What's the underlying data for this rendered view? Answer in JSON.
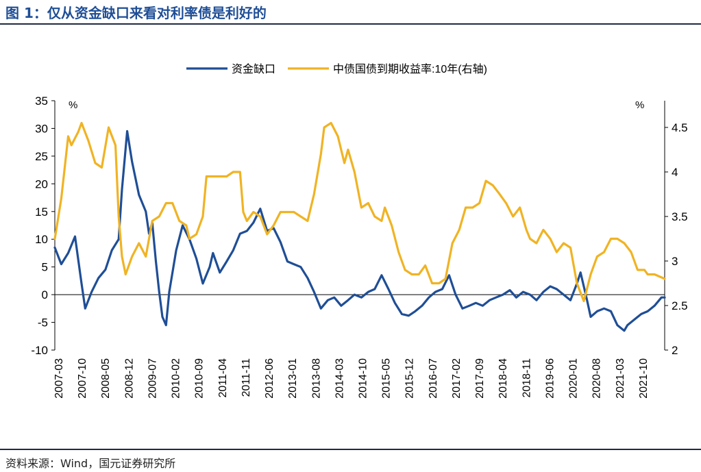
{
  "header": {
    "title": "图 1：仅从资金缺口来看对利率债是利好的"
  },
  "footer": {
    "source": "资料来源：Wind，国元证券研究所"
  },
  "colors": {
    "title": "#1f4e96",
    "gap_series": "#1f4e96",
    "yield_series": "#f0b323",
    "axis": "#000000"
  },
  "chart_data": {
    "type": "line",
    "y_unit_left": "%",
    "y_unit_right": "%",
    "ylim_left": [
      -10,
      35
    ],
    "yticks_left": [
      "-10",
      "-5",
      "0",
      "5",
      "10",
      "15",
      "20",
      "25",
      "30",
      "35"
    ],
    "ylim_right": [
      2,
      4.8
    ],
    "yticks_right": [
      "2",
      "2.5",
      "3",
      "3.5",
      "4",
      "4.5"
    ],
    "x_tick_labels": [
      "2007-03",
      "2007-10",
      "2008-05",
      "2008-12",
      "2009-07",
      "2010-02",
      "2010-09",
      "2011-04",
      "2011-11",
      "2012-06",
      "2013-01",
      "2013-08",
      "2014-03",
      "2014-10",
      "2015-05",
      "2015-12",
      "2016-07",
      "2017-02",
      "2017-09",
      "2018-04",
      "2018-11",
      "2019-06",
      "2020-01",
      "2020-08",
      "2021-03",
      "2021-10"
    ],
    "legend_position": "top-center",
    "grid": false,
    "series": [
      {
        "name": "资金缺口",
        "axis": "left",
        "values": [
          [
            2007.17,
            8.5
          ],
          [
            2007.33,
            5.5
          ],
          [
            2007.5,
            7.5
          ],
          [
            2007.67,
            10.5
          ],
          [
            2007.83,
            2.0
          ],
          [
            2007.92,
            -2.5
          ],
          [
            2008.08,
            0.5
          ],
          [
            2008.25,
            3.0
          ],
          [
            2008.42,
            4.5
          ],
          [
            2008.58,
            8.0
          ],
          [
            2008.75,
            10.0
          ],
          [
            2008.83,
            19.0
          ],
          [
            2008.96,
            29.5
          ],
          [
            2009.08,
            24.0
          ],
          [
            2009.25,
            18.0
          ],
          [
            2009.42,
            15.0
          ],
          [
            2009.5,
            11.0
          ],
          [
            2009.58,
            13.0
          ],
          [
            2009.67,
            6.0
          ],
          [
            2009.75,
            0.5
          ],
          [
            2009.83,
            -4.0
          ],
          [
            2009.92,
            -5.5
          ],
          [
            2010.0,
            0.5
          ],
          [
            2010.17,
            8.0
          ],
          [
            2010.33,
            12.5
          ],
          [
            2010.5,
            10.0
          ],
          [
            2010.67,
            6.5
          ],
          [
            2010.83,
            2.0
          ],
          [
            2011.0,
            5.0
          ],
          [
            2011.08,
            7.5
          ],
          [
            2011.25,
            4.0
          ],
          [
            2011.42,
            6.0
          ],
          [
            2011.58,
            8.0
          ],
          [
            2011.75,
            11.0
          ],
          [
            2011.92,
            11.5
          ],
          [
            2012.08,
            13.0
          ],
          [
            2012.25,
            15.5
          ],
          [
            2012.42,
            11.5
          ],
          [
            2012.58,
            12.0
          ],
          [
            2012.75,
            9.5
          ],
          [
            2012.92,
            6.0
          ],
          [
            2013.08,
            5.5
          ],
          [
            2013.25,
            5.0
          ],
          [
            2013.42,
            3.0
          ],
          [
            2013.58,
            0.5
          ],
          [
            2013.75,
            -2.5
          ],
          [
            2013.92,
            -1.0
          ],
          [
            2014.08,
            -0.5
          ],
          [
            2014.25,
            -2.0
          ],
          [
            2014.42,
            -1.0
          ],
          [
            2014.58,
            0.0
          ],
          [
            2014.75,
            -0.5
          ],
          [
            2014.92,
            0.5
          ],
          [
            2015.08,
            1.0
          ],
          [
            2015.25,
            3.5
          ],
          [
            2015.42,
            1.0
          ],
          [
            2015.58,
            -1.5
          ],
          [
            2015.75,
            -3.5
          ],
          [
            2015.92,
            -3.8
          ],
          [
            2016.08,
            -3.0
          ],
          [
            2016.25,
            -2.0
          ],
          [
            2016.42,
            -0.5
          ],
          [
            2016.58,
            0.5
          ],
          [
            2016.75,
            1.0
          ],
          [
            2016.92,
            3.5
          ],
          [
            2017.08,
            0.0
          ],
          [
            2017.25,
            -2.5
          ],
          [
            2017.42,
            -2.0
          ],
          [
            2017.58,
            -1.5
          ],
          [
            2017.75,
            -2.0
          ],
          [
            2017.92,
            -1.0
          ],
          [
            2018.08,
            -0.5
          ],
          [
            2018.25,
            0.0
          ],
          [
            2018.42,
            0.8
          ],
          [
            2018.58,
            -0.5
          ],
          [
            2018.75,
            0.5
          ],
          [
            2018.92,
            0.0
          ],
          [
            2019.08,
            -1.0
          ],
          [
            2019.25,
            0.5
          ],
          [
            2019.42,
            1.5
          ],
          [
            2019.58,
            1.0
          ],
          [
            2019.75,
            0.0
          ],
          [
            2019.92,
            -1.0
          ],
          [
            2020.08,
            2.0
          ],
          [
            2020.17,
            4.0
          ],
          [
            2020.33,
            -1.0
          ],
          [
            2020.42,
            -4.0
          ],
          [
            2020.58,
            -3.0
          ],
          [
            2020.75,
            -2.5
          ],
          [
            2020.92,
            -3.0
          ],
          [
            2021.08,
            -5.5
          ],
          [
            2021.25,
            -6.5
          ],
          [
            2021.33,
            -5.5
          ],
          [
            2021.5,
            -4.5
          ],
          [
            2021.67,
            -3.5
          ],
          [
            2021.83,
            -3.0
          ],
          [
            2022.0,
            -2.0
          ],
          [
            2022.17,
            -0.5
          ],
          [
            2022.25,
            -0.5
          ]
        ]
      },
      {
        "name": "中债国债到期收益率:10年(右轴)",
        "axis": "right",
        "values": [
          [
            2007.17,
            3.25
          ],
          [
            2007.33,
            3.7
          ],
          [
            2007.5,
            4.4
          ],
          [
            2007.58,
            4.3
          ],
          [
            2007.75,
            4.45
          ],
          [
            2007.83,
            4.55
          ],
          [
            2008.0,
            4.35
          ],
          [
            2008.17,
            4.1
          ],
          [
            2008.33,
            4.05
          ],
          [
            2008.5,
            4.5
          ],
          [
            2008.67,
            4.3
          ],
          [
            2008.75,
            3.5
          ],
          [
            2008.83,
            3.05
          ],
          [
            2008.92,
            2.85
          ],
          [
            2009.08,
            3.05
          ],
          [
            2009.25,
            3.2
          ],
          [
            2009.42,
            3.05
          ],
          [
            2009.58,
            3.45
          ],
          [
            2009.75,
            3.5
          ],
          [
            2009.92,
            3.65
          ],
          [
            2010.08,
            3.65
          ],
          [
            2010.25,
            3.45
          ],
          [
            2010.42,
            3.4
          ],
          [
            2010.5,
            3.25
          ],
          [
            2010.67,
            3.3
          ],
          [
            2010.83,
            3.5
          ],
          [
            2010.92,
            3.95
          ],
          [
            2011.08,
            3.95
          ],
          [
            2011.25,
            3.95
          ],
          [
            2011.42,
            3.95
          ],
          [
            2011.58,
            4.0
          ],
          [
            2011.75,
            4.0
          ],
          [
            2011.83,
            3.55
          ],
          [
            2011.92,
            3.45
          ],
          [
            2012.08,
            3.55
          ],
          [
            2012.25,
            3.5
          ],
          [
            2012.42,
            3.3
          ],
          [
            2012.58,
            3.4
          ],
          [
            2012.75,
            3.55
          ],
          [
            2012.92,
            3.55
          ],
          [
            2013.08,
            3.55
          ],
          [
            2013.25,
            3.5
          ],
          [
            2013.42,
            3.45
          ],
          [
            2013.58,
            3.75
          ],
          [
            2013.75,
            4.2
          ],
          [
            2013.83,
            4.5
          ],
          [
            2014.0,
            4.55
          ],
          [
            2014.17,
            4.4
          ],
          [
            2014.33,
            4.1
          ],
          [
            2014.42,
            4.25
          ],
          [
            2014.58,
            4.0
          ],
          [
            2014.75,
            3.6
          ],
          [
            2014.92,
            3.65
          ],
          [
            2015.08,
            3.5
          ],
          [
            2015.25,
            3.45
          ],
          [
            2015.33,
            3.6
          ],
          [
            2015.5,
            3.4
          ],
          [
            2015.67,
            3.1
          ],
          [
            2015.83,
            2.9
          ],
          [
            2016.0,
            2.85
          ],
          [
            2016.17,
            2.85
          ],
          [
            2016.33,
            2.95
          ],
          [
            2016.5,
            2.75
          ],
          [
            2016.67,
            2.75
          ],
          [
            2016.83,
            2.8
          ],
          [
            2017.0,
            3.2
          ],
          [
            2017.17,
            3.35
          ],
          [
            2017.33,
            3.6
          ],
          [
            2017.5,
            3.6
          ],
          [
            2017.67,
            3.65
          ],
          [
            2017.83,
            3.9
          ],
          [
            2018.0,
            3.85
          ],
          [
            2018.17,
            3.75
          ],
          [
            2018.33,
            3.65
          ],
          [
            2018.5,
            3.5
          ],
          [
            2018.67,
            3.6
          ],
          [
            2018.83,
            3.35
          ],
          [
            2018.92,
            3.25
          ],
          [
            2019.08,
            3.2
          ],
          [
            2019.25,
            3.35
          ],
          [
            2019.42,
            3.25
          ],
          [
            2019.58,
            3.1
          ],
          [
            2019.75,
            3.2
          ],
          [
            2019.92,
            3.15
          ],
          [
            2020.08,
            2.75
          ],
          [
            2020.25,
            2.55
          ],
          [
            2020.42,
            2.85
          ],
          [
            2020.58,
            3.05
          ],
          [
            2020.75,
            3.1
          ],
          [
            2020.92,
            3.25
          ],
          [
            2021.08,
            3.25
          ],
          [
            2021.25,
            3.2
          ],
          [
            2021.42,
            3.1
          ],
          [
            2021.58,
            2.9
          ],
          [
            2021.75,
            2.9
          ],
          [
            2021.83,
            2.85
          ],
          [
            2022.0,
            2.85
          ],
          [
            2022.25,
            2.8
          ]
        ]
      }
    ]
  }
}
